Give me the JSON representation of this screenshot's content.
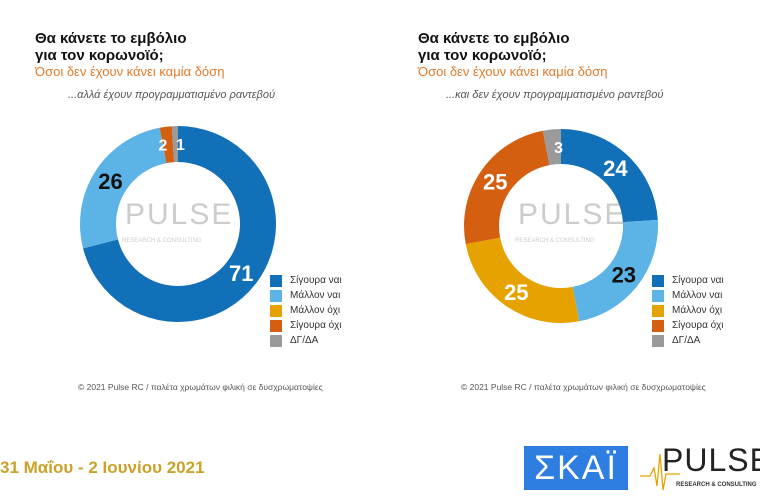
{
  "colors": {
    "sigoura_nai": "#1170b8",
    "mallon_nai": "#5cb3e6",
    "mallon_oxi": "#e6a300",
    "sigoura_oxi": "#d45f10",
    "dg_da": "#9a9a9a"
  },
  "chart_data": [
    {
      "type": "pie",
      "variant": "donut",
      "title": "Θα κάνετε το εμβόλιο για τον κορωνοϊό;",
      "subtitle": "Όσοι δεν έχουν κάνει καμία δόση",
      "note": "...αλλά έχουν προγραμματισμένο ραντεβού",
      "categories": [
        "Σίγουρα ναι",
        "Μάλλον ναι",
        "Μάλλον όχι",
        "Σίγουρα όχι",
        "ΔΓ/ΔΑ"
      ],
      "values": [
        71,
        26,
        0,
        2,
        1
      ],
      "legend": "right",
      "footer": "© 2021 Pulse RC  /  παλέτα χρωμάτων φιλική σε δυσχρωματοψίες"
    },
    {
      "type": "pie",
      "variant": "donut",
      "title": "Θα κάνετε το εμβόλιο για τον κορωνοϊό;",
      "subtitle": "Όσοι δεν έχουν κάνει καμία δόση",
      "note": "...και δεν έχουν προγραμματισμένο ραντεβού",
      "categories": [
        "Σίγουρα ναι",
        "Μάλλον ναι",
        "Μάλλον όχι",
        "Σίγουρα όχι",
        "ΔΓ/ΔΑ"
      ],
      "values": [
        24,
        23,
        25,
        25,
        3
      ],
      "legend": "right",
      "footer": "© 2021 Pulse RC  /  παλέτα χρωμάτων φιλική σε δυσχρωματοψίες"
    }
  ],
  "titles": {
    "line1": "Θα κάνετε το εμβόλιο",
    "line2": "για τον κορωνοϊό;"
  },
  "date": "31 Μαΐου - 2 Ιουνίου 2021",
  "logos": {
    "skai": "ΣΚΑΪ",
    "pulse": "PULSE",
    "pulse_sub": "RESEARCH & CONSULTING"
  }
}
